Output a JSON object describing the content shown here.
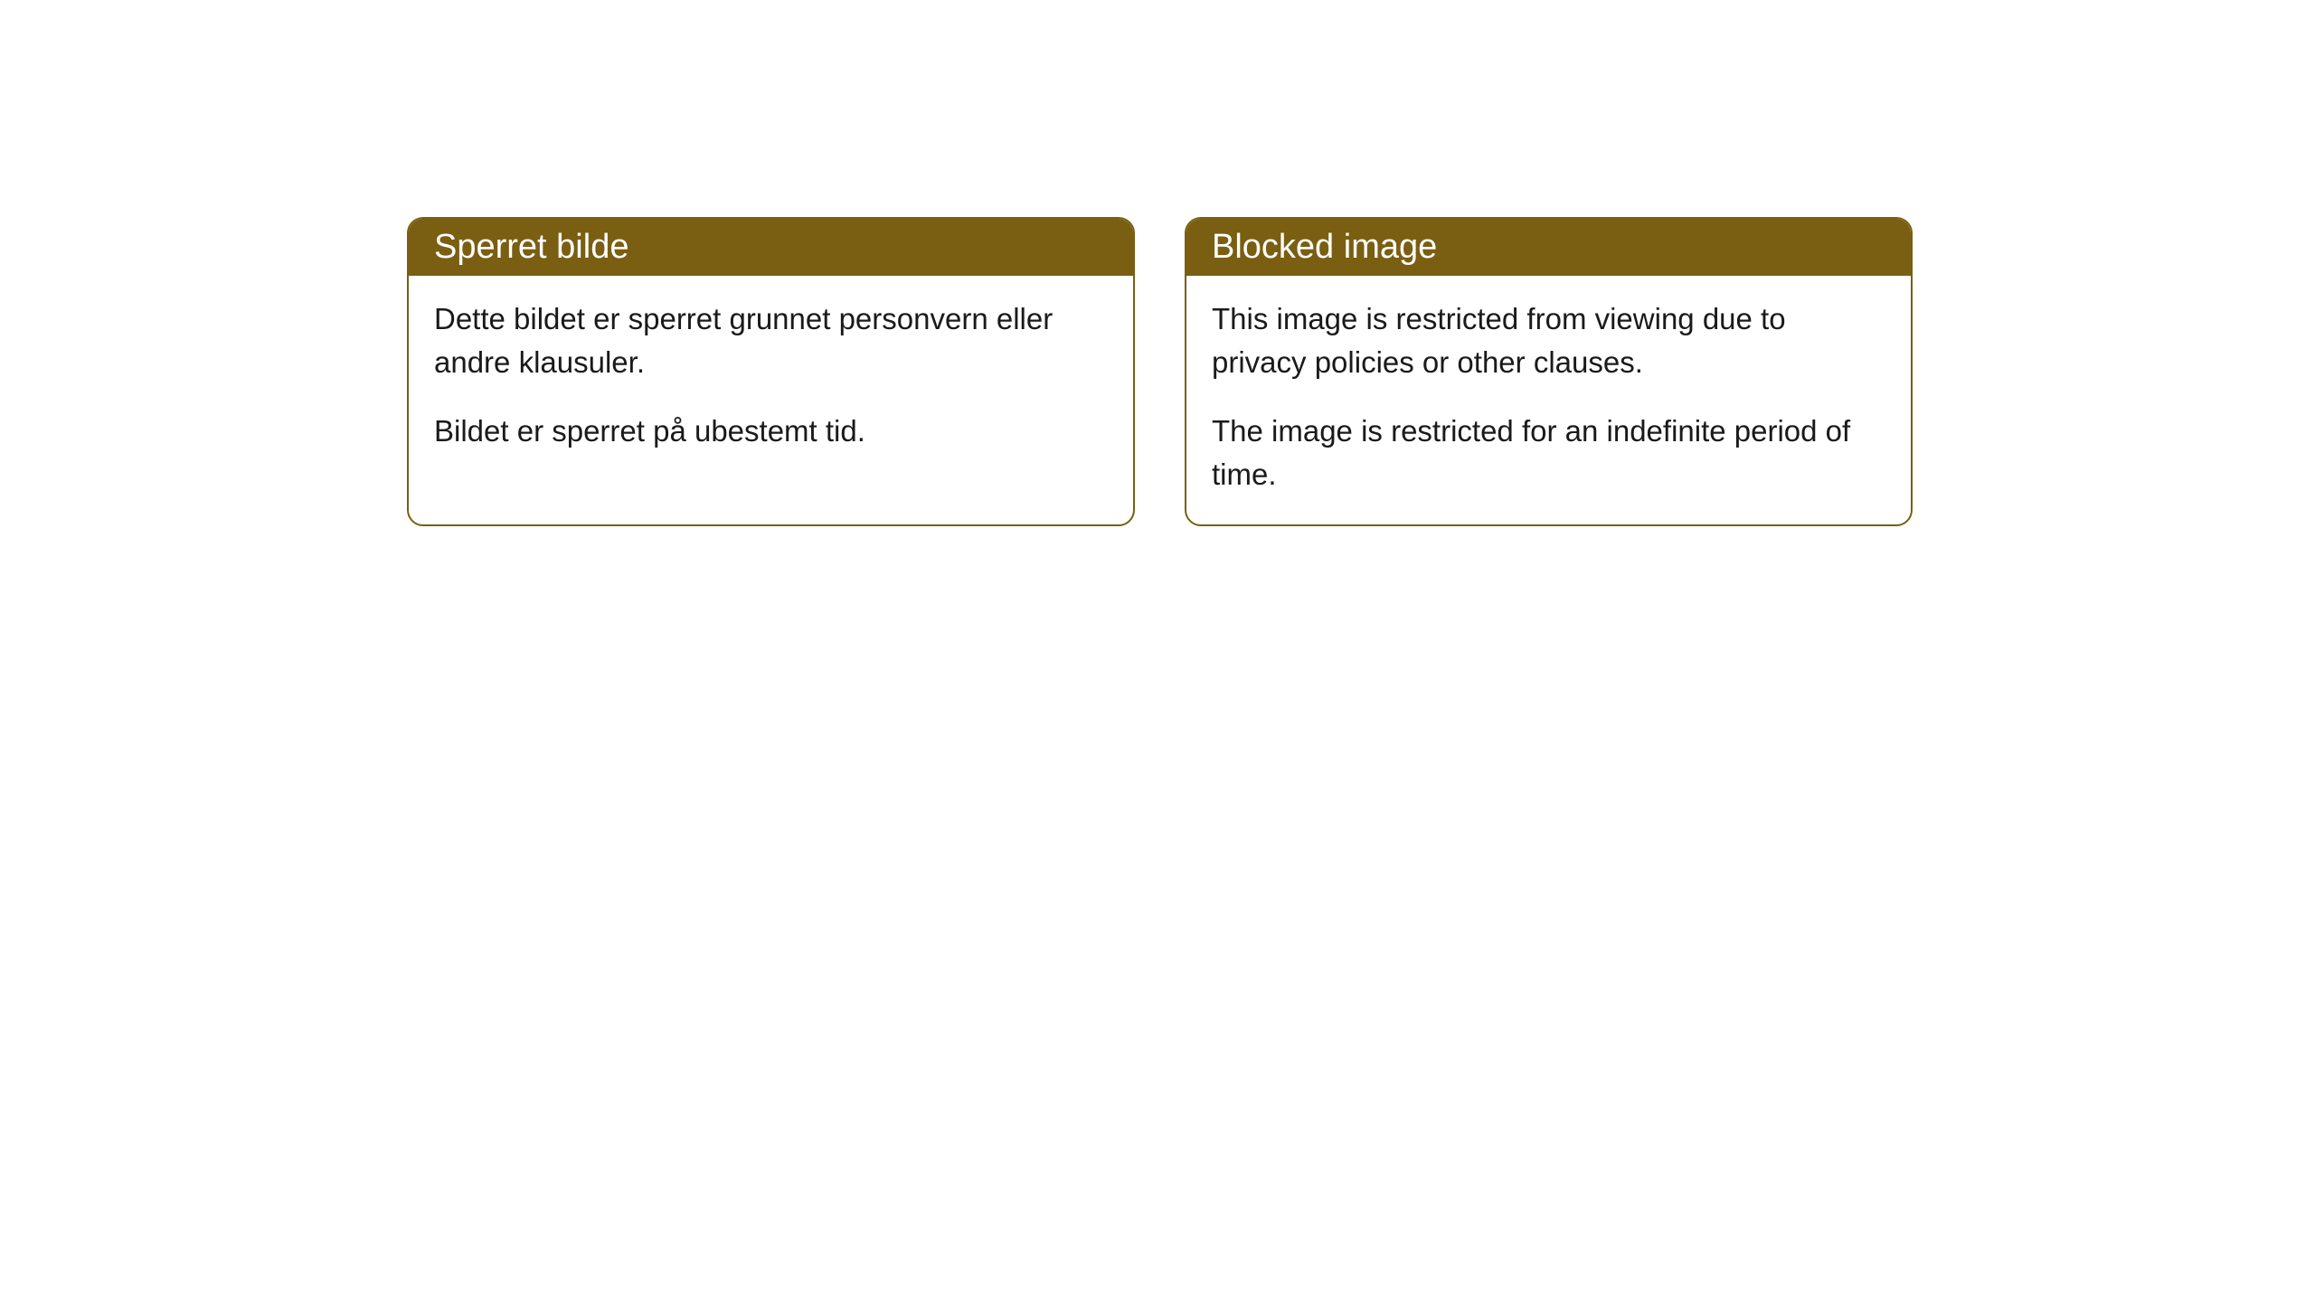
{
  "cards": [
    {
      "title": "Sperret bilde",
      "paragraph1": "Dette bildet er sperret grunnet personvern eller andre klausuler.",
      "paragraph2": "Bildet er sperret på ubestemt tid."
    },
    {
      "title": "Blocked image",
      "paragraph1": "This image is restricted from viewing due to privacy policies or other clauses.",
      "paragraph2": "The image is restricted for an indefinite period of time."
    }
  ],
  "styling": {
    "header_background": "#7a5e11",
    "header_text_color": "#ffffff",
    "border_color": "#7a5e11",
    "body_background": "#ffffff",
    "body_text_color": "#1a1a1a",
    "border_radius": 18,
    "header_fontsize": 38,
    "body_fontsize": 33
  }
}
